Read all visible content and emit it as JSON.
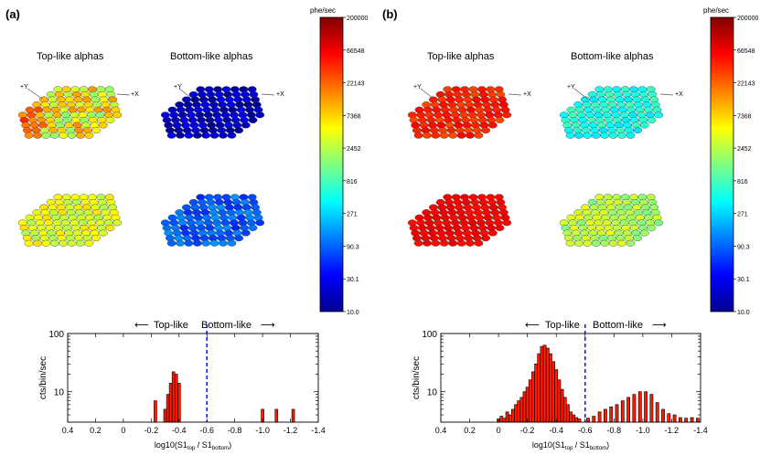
{
  "panels": [
    {
      "label": "(a)",
      "titles": [
        "Top-like alphas",
        "Bottom-like alphas"
      ],
      "axis_markers": [
        "+Y",
        "+X"
      ],
      "colorbar": {
        "unit": "phe/sec",
        "ticks": [
          "200000",
          "66548",
          "22143",
          "7368",
          "2452",
          "816",
          "271",
          "90.3",
          "30.1",
          "10.0"
        ]
      },
      "hex_maps": [
        {
          "name": "top-array-top-like",
          "level": 0.62,
          "spread": 0.12,
          "hot_left": true
        },
        {
          "name": "top-array-bottom-like",
          "level": 0.06,
          "spread": 0.05,
          "hot_left": false
        },
        {
          "name": "bottom-array-top-like",
          "level": 0.6,
          "spread": 0.06,
          "hot_left": false
        },
        {
          "name": "bottom-array-bottom-like",
          "level": 0.22,
          "spread": 0.06,
          "hot_left": false
        }
      ],
      "region_labels": {
        "left": "Top-like",
        "right": "Bottom-like"
      }
    },
    {
      "label": "(b)",
      "titles": [
        "Top-like alphas",
        "Bottom-like alphas"
      ],
      "axis_markers": [
        "+Y",
        "+X"
      ],
      "colorbar": {
        "unit": "phe/sec",
        "ticks": [
          "200000",
          "66548",
          "22143",
          "7368",
          "2452",
          "816",
          "271",
          "90.3",
          "30.1",
          "10.0"
        ]
      },
      "hex_maps": [
        {
          "name": "top-array-top-like",
          "level": 0.84,
          "spread": 0.04,
          "hot_left": false
        },
        {
          "name": "top-array-bottom-like",
          "level": 0.4,
          "spread": 0.05,
          "hot_left": false
        },
        {
          "name": "bottom-array-top-like",
          "level": 0.88,
          "spread": 0.02,
          "hot_left": false
        },
        {
          "name": "bottom-array-bottom-like",
          "level": 0.55,
          "spread": 0.06,
          "hot_left": false
        }
      ],
      "region_labels": {
        "left": "Top-like",
        "right": "Bottom-like"
      }
    }
  ],
  "chart_data": [
    {
      "type": "bar",
      "panel": "(a)",
      "xlabel": "log10(S1top / S1bottom)",
      "xlabel_parts": {
        "main": "log10(S1",
        "sub1": "top",
        "mid": " / S1",
        "sub2": "bottom",
        "end": ")"
      },
      "ylabel": "cts/bin/sec",
      "y_scale": "log",
      "xlim": [
        0.4,
        -1.4
      ],
      "ylim": [
        3,
        100
      ],
      "x_ticks": [
        "0.4",
        "0.2",
        "0",
        "-0.2",
        "-0.4",
        "-0.6",
        "-0.8",
        "-1.0",
        "-1.2",
        "-1.4"
      ],
      "y_ticks": [
        "100",
        "10"
      ],
      "divider": -0.6,
      "bin_width": 0.02,
      "bins": [
        {
          "x": -0.23,
          "value": 7
        },
        {
          "x": -0.3,
          "value": 5
        },
        {
          "x": -0.32,
          "value": 9
        },
        {
          "x": -0.34,
          "value": 14
        },
        {
          "x": -0.36,
          "value": 22
        },
        {
          "x": -0.38,
          "value": 20
        },
        {
          "x": -0.4,
          "value": 14
        },
        {
          "x": -1.0,
          "value": 5
        },
        {
          "x": -1.1,
          "value": 5
        },
        {
          "x": -1.22,
          "value": 5
        }
      ]
    },
    {
      "type": "bar",
      "panel": "(b)",
      "xlabel": "log10(S1top / S1bottom)",
      "xlabel_parts": {
        "main": "log10(S1",
        "sub1": "top",
        "mid": " / S1",
        "sub2": "bottom",
        "end": ")"
      },
      "ylabel": "cts/bin/sec",
      "y_scale": "log",
      "xlim": [
        0.4,
        -1.4
      ],
      "ylim": [
        3,
        100
      ],
      "x_ticks": [
        "0.4",
        "0.2",
        "0",
        "-0.2",
        "-0.4",
        "-0.6",
        "-0.8",
        "-1.0",
        "-1.2",
        "-1.4"
      ],
      "y_ticks": [
        "100",
        "10"
      ],
      "divider": -0.6,
      "bin_width": 0.02,
      "bins": [
        {
          "x": 0.0,
          "value": 3.4
        },
        {
          "x": -0.02,
          "value": 3.8
        },
        {
          "x": -0.04,
          "value": 3.5
        },
        {
          "x": -0.06,
          "value": 4.5
        },
        {
          "x": -0.08,
          "value": 4
        },
        {
          "x": -0.1,
          "value": 5
        },
        {
          "x": -0.12,
          "value": 6
        },
        {
          "x": -0.14,
          "value": 7
        },
        {
          "x": -0.16,
          "value": 8
        },
        {
          "x": -0.18,
          "value": 10
        },
        {
          "x": -0.2,
          "value": 12
        },
        {
          "x": -0.22,
          "value": 16
        },
        {
          "x": -0.24,
          "value": 22
        },
        {
          "x": -0.26,
          "value": 30
        },
        {
          "x": -0.28,
          "value": 45
        },
        {
          "x": -0.3,
          "value": 60
        },
        {
          "x": -0.32,
          "value": 63
        },
        {
          "x": -0.34,
          "value": 56
        },
        {
          "x": -0.36,
          "value": 45
        },
        {
          "x": -0.38,
          "value": 33
        },
        {
          "x": -0.4,
          "value": 24
        },
        {
          "x": -0.42,
          "value": 16
        },
        {
          "x": -0.44,
          "value": 11
        },
        {
          "x": -0.46,
          "value": 8
        },
        {
          "x": -0.48,
          "value": 6
        },
        {
          "x": -0.5,
          "value": 4.5
        },
        {
          "x": -0.52,
          "value": 4
        },
        {
          "x": -0.54,
          "value": 3.6
        },
        {
          "x": -0.56,
          "value": 3.4
        },
        {
          "x": -0.62,
          "value": 3.5
        },
        {
          "x": -0.66,
          "value": 3.8
        },
        {
          "x": -0.7,
          "value": 4.5
        },
        {
          "x": -0.74,
          "value": 5
        },
        {
          "x": -0.78,
          "value": 5.5
        },
        {
          "x": -0.82,
          "value": 6
        },
        {
          "x": -0.86,
          "value": 7
        },
        {
          "x": -0.9,
          "value": 8
        },
        {
          "x": -0.94,
          "value": 9
        },
        {
          "x": -0.98,
          "value": 10
        },
        {
          "x": -1.02,
          "value": 10
        },
        {
          "x": -1.06,
          "value": 9
        },
        {
          "x": -1.1,
          "value": 6.5
        },
        {
          "x": -1.14,
          "value": 5
        },
        {
          "x": -1.18,
          "value": 4.2
        },
        {
          "x": -1.22,
          "value": 4
        },
        {
          "x": -1.26,
          "value": 3.6
        },
        {
          "x": -1.3,
          "value": 3.5
        },
        {
          "x": -1.34,
          "value": 3.6
        },
        {
          "x": -1.38,
          "value": 3.5
        }
      ]
    }
  ]
}
